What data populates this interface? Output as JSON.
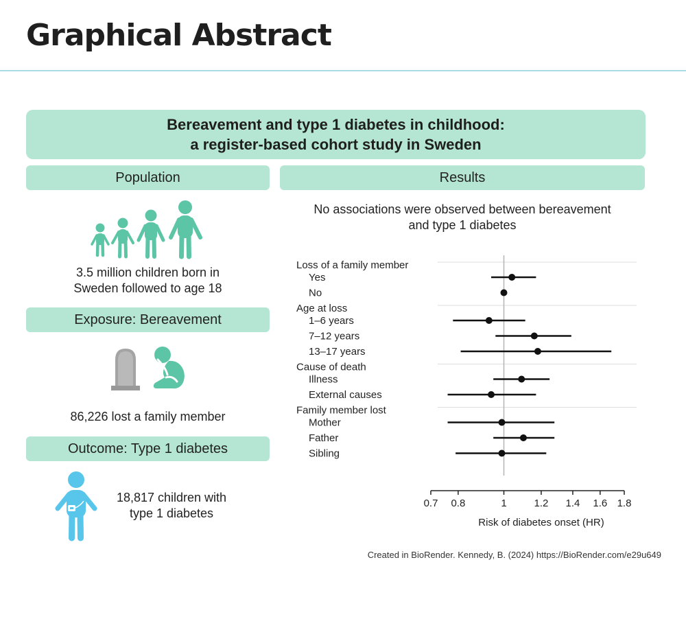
{
  "header": {
    "title": "Graphical Abstract"
  },
  "abstract": {
    "title_line1": "Bereavement and type 1 diabetes in childhood:",
    "title_line2": "a register-based cohort study in Sweden",
    "population": {
      "label": "Population",
      "caption_line1": "3.5 million children born in",
      "caption_line2": "Sweden followed to age 18"
    },
    "exposure": {
      "label": "Exposure: Bereavement",
      "caption": "86,226  lost a family member"
    },
    "outcome": {
      "label": "Outcome: Type 1 diabetes",
      "caption_line1": "18,817  children with",
      "caption_line2": "type 1 diabetes"
    },
    "results": {
      "label": "Results",
      "summary_line1": "No associations were observed between bereavement",
      "summary_line2": "and type 1 diabetes"
    },
    "credit": "Created in BioRender. Kennedy, B. (2024) https://BioRender.com/e29u649"
  },
  "colors": {
    "banner": "#b4e6d3",
    "people": "#5cc5a6",
    "child": "#58c6ea",
    "grave": "#a4a4a4",
    "rule": "#a9dbe6"
  },
  "icons": [
    "family-silhouettes-icon",
    "gravestone-icon",
    "grieving-child-icon",
    "child-with-insulin-pump-icon"
  ],
  "chart_data": {
    "type": "forest",
    "xlabel": "Risk of diabetes onset (HR)",
    "x_scale": "log",
    "xlim": [
      0.7,
      1.8
    ],
    "ticks": [
      0.7,
      0.8,
      1,
      1.2,
      1.4,
      1.6,
      1.8
    ],
    "tick_labels": [
      "0.7",
      "0.8",
      "1",
      "1.2",
      "1.4",
      "1.6",
      "1.8"
    ],
    "reference_line": 1,
    "groups": [
      {
        "name": "Loss of a family member",
        "rows": [
          {
            "label": "Yes",
            "hr": 1.04,
            "lo": 0.94,
            "hi": 1.17
          },
          {
            "label": "No",
            "hr": 1.0,
            "lo": null,
            "hi": null
          }
        ]
      },
      {
        "name": "Age at loss",
        "rows": [
          {
            "label": "1–6 years",
            "hr": 0.93,
            "lo": 0.78,
            "hi": 1.11
          },
          {
            "label": "7–12 years",
            "hr": 1.16,
            "lo": 0.96,
            "hi": 1.39
          },
          {
            "label": "13–17 years",
            "hr": 1.18,
            "lo": 0.81,
            "hi": 1.69
          }
        ]
      },
      {
        "name": "Cause of death",
        "rows": [
          {
            "label": "Illness",
            "hr": 1.09,
            "lo": 0.95,
            "hi": 1.25
          },
          {
            "label": "External causes",
            "hr": 0.94,
            "lo": 0.76,
            "hi": 1.17
          }
        ]
      },
      {
        "name": "Family member lost",
        "rows": [
          {
            "label": "Mother",
            "hr": 0.99,
            "lo": 0.76,
            "hi": 1.28
          },
          {
            "label": "Father",
            "hr": 1.1,
            "lo": 0.95,
            "hi": 1.28
          },
          {
            "label": "Sibling",
            "hr": 0.99,
            "lo": 0.79,
            "hi": 1.23
          }
        ]
      }
    ]
  }
}
